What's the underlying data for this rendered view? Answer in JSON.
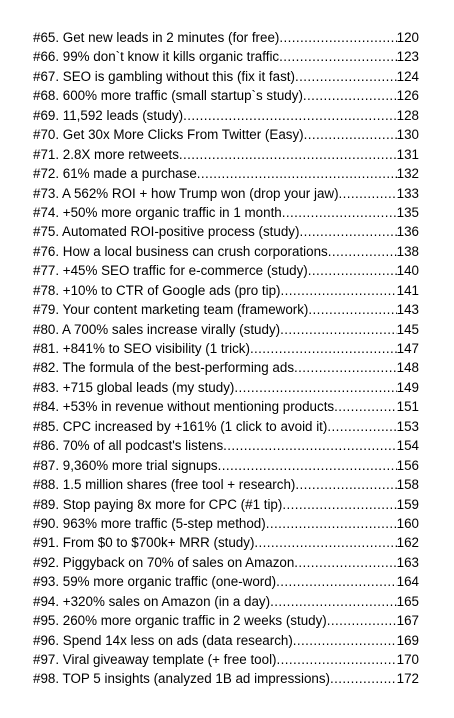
{
  "toc": {
    "entries": [
      {
        "title": "#65. Get new leads in 2 minutes (for free)",
        "page": "120"
      },
      {
        "title": "#66. 99% don`t know it kills organic traffic",
        "page": "123"
      },
      {
        "title": "#67. SEO is gambling without this (fix it fast)",
        "page": "124"
      },
      {
        "title": "#68. 600% more traffic (small startup`s study)",
        "page": "126"
      },
      {
        "title": "#69. 11,592 leads (study)",
        "page": "128"
      },
      {
        "title": "#70. Get 30x More Clicks From Twitter (Easy)",
        "page": "130"
      },
      {
        "title": "#71. 2.8X more retweets",
        "page": "131"
      },
      {
        "title": "#72. 61% made a purchase",
        "page": "132"
      },
      {
        "title": "#73. A 562% ROI + how Trump won (drop your jaw)",
        "page": "133"
      },
      {
        "title": "#74. +50% more organic traffic in 1 month",
        "page": "135"
      },
      {
        "title": "#75. Automated ROI-positive process (study)",
        "page": "136"
      },
      {
        "title": "#76. How a local business can crush corporations",
        "page": "138"
      },
      {
        "title": "#77. +45% SEO traffic for e-commerce (study)",
        "page": "140"
      },
      {
        "title": "#78. +10% to CTR of Google ads (pro tip)",
        "page": "141"
      },
      {
        "title": "#79. Your content marketing team (framework)",
        "page": "143"
      },
      {
        "title": "#80. A 700% sales increase virally (study)",
        "page": "145"
      },
      {
        "title": "#81. +841% to SEO visibility (1 trick)",
        "page": "147"
      },
      {
        "title": "#82. The formula of the best-performing ads",
        "page": "148"
      },
      {
        "title": "#83. +715 global leads (my study)",
        "page": "149"
      },
      {
        "title": "#84. +53% in revenue without mentioning products",
        "page": "151"
      },
      {
        "title": "#85. CPC increased by +161% (1 click to avoid it)",
        "page": "153"
      },
      {
        "title": "#86. 70% of all podcast's listens",
        "page": "154"
      },
      {
        "title": "#87. 9,360% more trial signups",
        "page": "156"
      },
      {
        "title": "#88. 1.5 million shares (free tool + research)",
        "page": "158"
      },
      {
        "title": "#89. Stop paying 8x more for CPC (#1 tip)",
        "page": "159"
      },
      {
        "title": "#90. 963% more traffic (5-step method)",
        "page": "160"
      },
      {
        "title": "#91. From $0 to $700k+ MRR (study)",
        "page": "162"
      },
      {
        "title": "#92. Piggyback on 70% of sales on Amazon",
        "page": "163"
      },
      {
        "title": "#93. 59% more organic traffic (one-word)",
        "page": "164"
      },
      {
        "title": "#94. +320% sales on Amazon (in a day)",
        "page": "165"
      },
      {
        "title": "#95. 260% more organic traffic in 2 weeks (study)",
        "page": "167"
      },
      {
        "title": "#96. Spend 14x less on ads (data research)",
        "page": "169"
      },
      {
        "title": "#97. Viral giveaway template (+ free tool)",
        "page": "170"
      },
      {
        "title": "#98. TOP 5 insights (analyzed 1B ad impressions)",
        "page": "172"
      }
    ]
  }
}
